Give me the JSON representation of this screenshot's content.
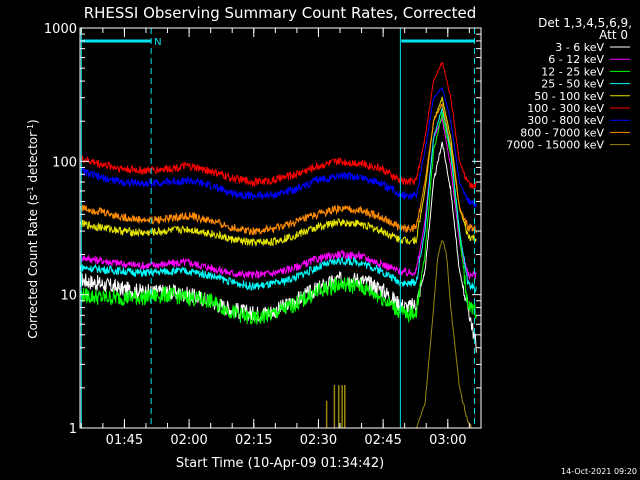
{
  "chart_data": {
    "type": "line",
    "title": "RHESSI Observing Summary Count Rates, Corrected",
    "xlabel": "Start Time (10-Apr-09 01:34:42)",
    "ylabel_main": "Corrected Count Rate (s",
    "ylabel_sup1": "-1",
    "ylabel_mid": " detector",
    "ylabel_sup2": "-1",
    "ylabel_end": ")",
    "yscale": "log",
    "ylim": [
      1,
      1000
    ],
    "xlim_minutes": [
      0,
      93
    ],
    "y_ticks": [
      "1",
      "10",
      "100",
      "1000"
    ],
    "x_ticks": [
      {
        "label": "01:45",
        "t": 10.3
      },
      {
        "label": "02:00",
        "t": 25.3
      },
      {
        "label": "02:15",
        "t": 40.3
      },
      {
        "label": "02:30",
        "t": 55.3
      },
      {
        "label": "02:45",
        "t": 70.3
      },
      {
        "label": "03:00",
        "t": 85.3
      }
    ],
    "legend_header": [
      "Det 1,3,4,5,6,9,",
      "Att 0"
    ],
    "annotation_marker": "N",
    "footer_timestamp": "14-Oct-2021 09:20",
    "colors": {
      "frame": "#ffffff",
      "status_line": "#00e5ee",
      "dashed_lines": "#00e5ee"
    },
    "status_bars": [
      {
        "t_start": 0.5,
        "t_end": 16.5
      },
      {
        "t_start": 74.5,
        "t_end": 91.5
      }
    ],
    "vertical_lines": [
      {
        "t": 0.3,
        "style": "solid"
      },
      {
        "t": 16.5,
        "style": "dashed"
      },
      {
        "t": 74.3,
        "style": "solid"
      },
      {
        "t": 91.5,
        "style": "dashed"
      }
    ],
    "sparse_spikes": {
      "series": "7000 - 15000 keV",
      "points": [
        {
          "t": 57.2,
          "y": 1.6
        },
        {
          "t": 59.0,
          "y": 2.1
        },
        {
          "t": 60.0,
          "y": 2.1
        },
        {
          "t": 60.8,
          "y": 2.1
        },
        {
          "t": 61.4,
          "y": 2.1
        }
      ]
    },
    "series": [
      {
        "name": "3 - 6 keV",
        "color": "#ffffff",
        "x": [
          0,
          5,
          10,
          15,
          20,
          25,
          30,
          35,
          40,
          45,
          50,
          55,
          60,
          65,
          70,
          74,
          76,
          78,
          80,
          82,
          84,
          86,
          88,
          90,
          92
        ],
        "y": [
          13,
          12,
          11,
          10.5,
          10.5,
          10,
          9,
          7.8,
          7.2,
          7.5,
          9,
          11,
          13,
          13,
          11,
          8.5,
          8,
          8.5,
          15,
          70,
          140,
          60,
          15,
          8,
          4
        ]
      },
      {
        "name": "6 - 12 keV",
        "color": "#ff00ff",
        "x": [
          0,
          5,
          10,
          15,
          20,
          25,
          30,
          35,
          40,
          45,
          50,
          55,
          60,
          65,
          70,
          74,
          76,
          78,
          80,
          82,
          84,
          86,
          88,
          90,
          92
        ],
        "y": [
          19,
          18,
          17,
          16.5,
          17,
          17.5,
          16,
          14.5,
          14,
          14.5,
          16,
          18.5,
          20,
          19.5,
          17,
          15,
          14.5,
          15,
          35,
          150,
          210,
          90,
          25,
          14,
          14
        ]
      },
      {
        "name": "12 - 25 keV",
        "color": "#00ff00",
        "x": [
          0,
          5,
          10,
          15,
          20,
          25,
          30,
          35,
          40,
          45,
          50,
          55,
          60,
          65,
          70,
          74,
          76,
          78,
          80,
          82,
          84,
          86,
          88,
          90,
          92
        ],
        "y": [
          10,
          9.5,
          9.5,
          9.5,
          10,
          9.5,
          9,
          7.5,
          6.5,
          7.2,
          8.5,
          10.5,
          12,
          11.5,
          9.5,
          7.5,
          7,
          7.5,
          20,
          120,
          230,
          110,
          28,
          8,
          7.5
        ]
      },
      {
        "name": "25 - 50 keV",
        "color": "#00ffff",
        "x": [
          0,
          5,
          10,
          15,
          20,
          25,
          30,
          35,
          40,
          45,
          50,
          55,
          60,
          65,
          70,
          74,
          76,
          78,
          80,
          82,
          84,
          86,
          88,
          90,
          92
        ],
        "y": [
          16,
          15.5,
          15,
          14.5,
          15,
          15,
          14,
          12.5,
          11.5,
          12,
          13.5,
          16,
          18,
          17.5,
          15,
          12.5,
          12,
          12.5,
          30,
          150,
          250,
          120,
          30,
          12,
          11
        ]
      },
      {
        "name": "50 - 100 keV",
        "color": "#e6e600",
        "x": [
          0,
          5,
          10,
          15,
          20,
          25,
          30,
          35,
          40,
          45,
          50,
          55,
          60,
          65,
          70,
          74,
          76,
          78,
          80,
          82,
          84,
          86,
          88,
          90,
          92
        ],
        "y": [
          34,
          32,
          30,
          29,
          30,
          31,
          29,
          26,
          24.5,
          25,
          28,
          32,
          35,
          34,
          30,
          26,
          25.5,
          26,
          60,
          200,
          300,
          150,
          45,
          27,
          26
        ]
      },
      {
        "name": "100 - 300 keV",
        "color": "#ff0000",
        "x": [
          0,
          5,
          10,
          15,
          20,
          25,
          30,
          35,
          40,
          45,
          50,
          55,
          60,
          65,
          70,
          74,
          76,
          78,
          80,
          82,
          84,
          86,
          88,
          90,
          92
        ],
        "y": [
          105,
          95,
          88,
          85,
          88,
          92,
          85,
          75,
          70,
          72,
          80,
          92,
          100,
          97,
          88,
          72,
          70,
          72,
          150,
          400,
          560,
          300,
          100,
          68,
          66
        ]
      },
      {
        "name": "300 - 800 keV",
        "color": "#0000ff",
        "x": [
          0,
          5,
          10,
          15,
          20,
          25,
          30,
          35,
          40,
          45,
          50,
          55,
          60,
          65,
          70,
          74,
          76,
          78,
          80,
          82,
          84,
          86,
          88,
          90,
          92
        ],
        "y": [
          85,
          75,
          70,
          68,
          70,
          72,
          66,
          58,
          55,
          56,
          62,
          72,
          78,
          76,
          68,
          57,
          55,
          56,
          120,
          300,
          360,
          200,
          70,
          50,
          48
        ]
      },
      {
        "name": "800 - 7000 keV",
        "color": "#ff8c00",
        "x": [
          0,
          5,
          10,
          15,
          20,
          25,
          30,
          35,
          40,
          45,
          50,
          55,
          60,
          65,
          70,
          74,
          76,
          78,
          80,
          82,
          84,
          86,
          88,
          90,
          92
        ],
        "y": [
          45,
          42,
          38,
          36,
          37,
          39,
          36,
          32,
          30,
          31,
          35,
          40,
          44,
          43,
          38,
          32,
          31,
          32,
          70,
          200,
          270,
          130,
          45,
          32,
          31
        ]
      },
      {
        "name": "7000 - 15000 keV",
        "color": "#9b870c",
        "x": [
          78,
          80,
          82,
          83,
          84,
          85,
          86,
          88,
          90,
          91
        ],
        "y": [
          1.0,
          1.5,
          8,
          20,
          26,
          20,
          8,
          2,
          1.1,
          1.0
        ]
      }
    ]
  }
}
